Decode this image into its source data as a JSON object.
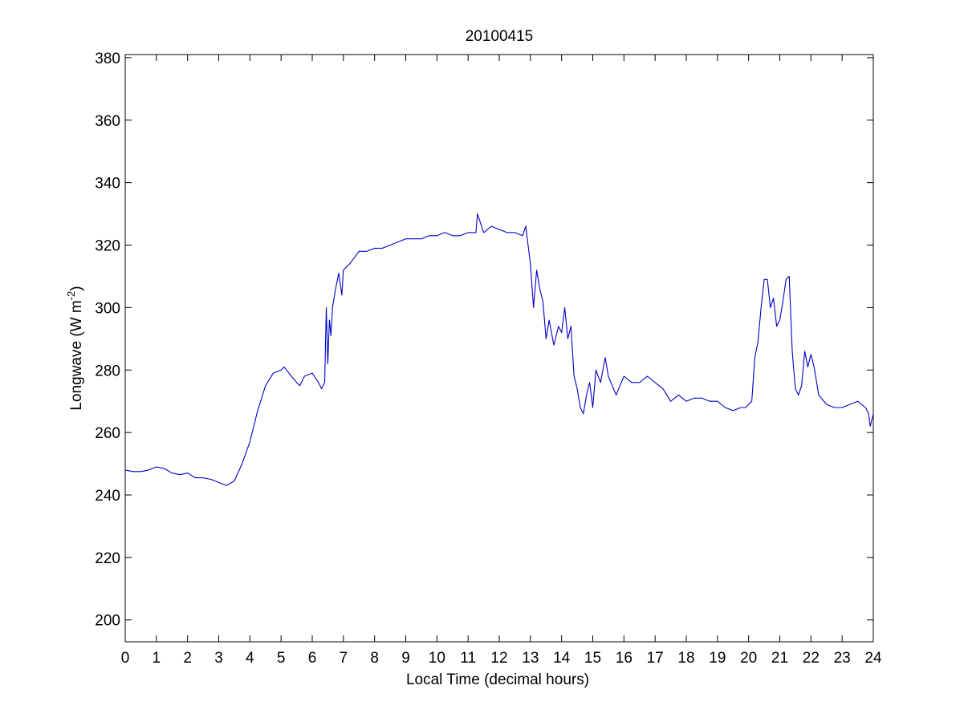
{
  "chart_data": {
    "type": "line",
    "title": "20100415",
    "xlabel": "Local Time (decimal hours)",
    "ylabel": {
      "base": "Longwave (W m",
      "exponent": "-2",
      "close": ")"
    },
    "xlim": [
      0,
      24
    ],
    "ylim": [
      193,
      381
    ],
    "xticks": [
      0,
      1,
      2,
      3,
      4,
      5,
      6,
      7,
      8,
      9,
      10,
      11,
      12,
      13,
      14,
      15,
      16,
      17,
      18,
      19,
      20,
      21,
      22,
      23,
      24
    ],
    "yticks": [
      200,
      220,
      240,
      260,
      280,
      300,
      320,
      340,
      360,
      380
    ],
    "grid": false,
    "legend": "none",
    "series": [
      {
        "color": "#0000c8",
        "x": [
          0,
          0.25,
          0.5,
          0.75,
          1,
          1.25,
          1.5,
          1.75,
          2,
          2.25,
          2.5,
          2.75,
          3,
          3.25,
          3.5,
          3.75,
          4,
          4.25,
          4.5,
          4.75,
          5,
          5.1,
          5.25,
          5.5,
          5.6,
          5.75,
          6,
          6.2,
          6.3,
          6.4,
          6.45,
          6.5,
          6.55,
          6.6,
          6.65,
          6.75,
          6.85,
          6.95,
          7,
          7.2,
          7.5,
          7.75,
          8,
          8.25,
          8.5,
          8.75,
          9,
          9.25,
          9.5,
          9.75,
          10,
          10.25,
          10.5,
          10.75,
          11,
          11.25,
          11.3,
          11.5,
          11.75,
          12,
          12.25,
          12.5,
          12.75,
          12.85,
          13,
          13.1,
          13.2,
          13.3,
          13.4,
          13.5,
          13.6,
          13.75,
          13.9,
          14,
          14.1,
          14.2,
          14.3,
          14.4,
          14.5,
          14.6,
          14.7,
          14.8,
          14.9,
          15,
          15.1,
          15.25,
          15.4,
          15.5,
          15.75,
          16,
          16.25,
          16.5,
          16.75,
          17,
          17.25,
          17.5,
          17.75,
          18,
          18.25,
          18.5,
          18.75,
          19,
          19.25,
          19.5,
          19.75,
          19.9,
          20,
          20.1,
          20.2,
          20.3,
          20.4,
          20.5,
          20.6,
          20.7,
          20.8,
          20.9,
          21,
          21.1,
          21.2,
          21.3,
          21.4,
          21.5,
          21.6,
          21.7,
          21.8,
          21.9,
          22,
          22.1,
          22.25,
          22.5,
          22.75,
          23,
          23.25,
          23.5,
          23.75,
          23.85,
          23.9,
          23.95,
          24
        ],
        "y": [
          248,
          247.5,
          247.5,
          248,
          249,
          248.5,
          247,
          246.5,
          247,
          245.5,
          245.5,
          245,
          244,
          243,
          244.5,
          250,
          257,
          267,
          275,
          279,
          280,
          281,
          279,
          276,
          275,
          278,
          279,
          276,
          274,
          276,
          300,
          282,
          296,
          291,
          300,
          306,
          311,
          304,
          312,
          314,
          318,
          318,
          319,
          319,
          320,
          321,
          322,
          322,
          322,
          323,
          323,
          324,
          323,
          323,
          324,
          324,
          330,
          324,
          326,
          325,
          324,
          324,
          323,
          326,
          314,
          300,
          312,
          306,
          302,
          290,
          296,
          288,
          294,
          292,
          300,
          290,
          294,
          278,
          274,
          268,
          266,
          272,
          276,
          268,
          280,
          276,
          284,
          278,
          272,
          278,
          276,
          276,
          278,
          276,
          274,
          270,
          272,
          270,
          271,
          271,
          270,
          270,
          268,
          267,
          268,
          268,
          269,
          270,
          284,
          289,
          300,
          309,
          309,
          300,
          303,
          294,
          296,
          302,
          309,
          310,
          286,
          274,
          272,
          275,
          286,
          281,
          285,
          281,
          272,
          269,
          268,
          268,
          269,
          270,
          268,
          266,
          262,
          264,
          266
        ]
      }
    ]
  }
}
